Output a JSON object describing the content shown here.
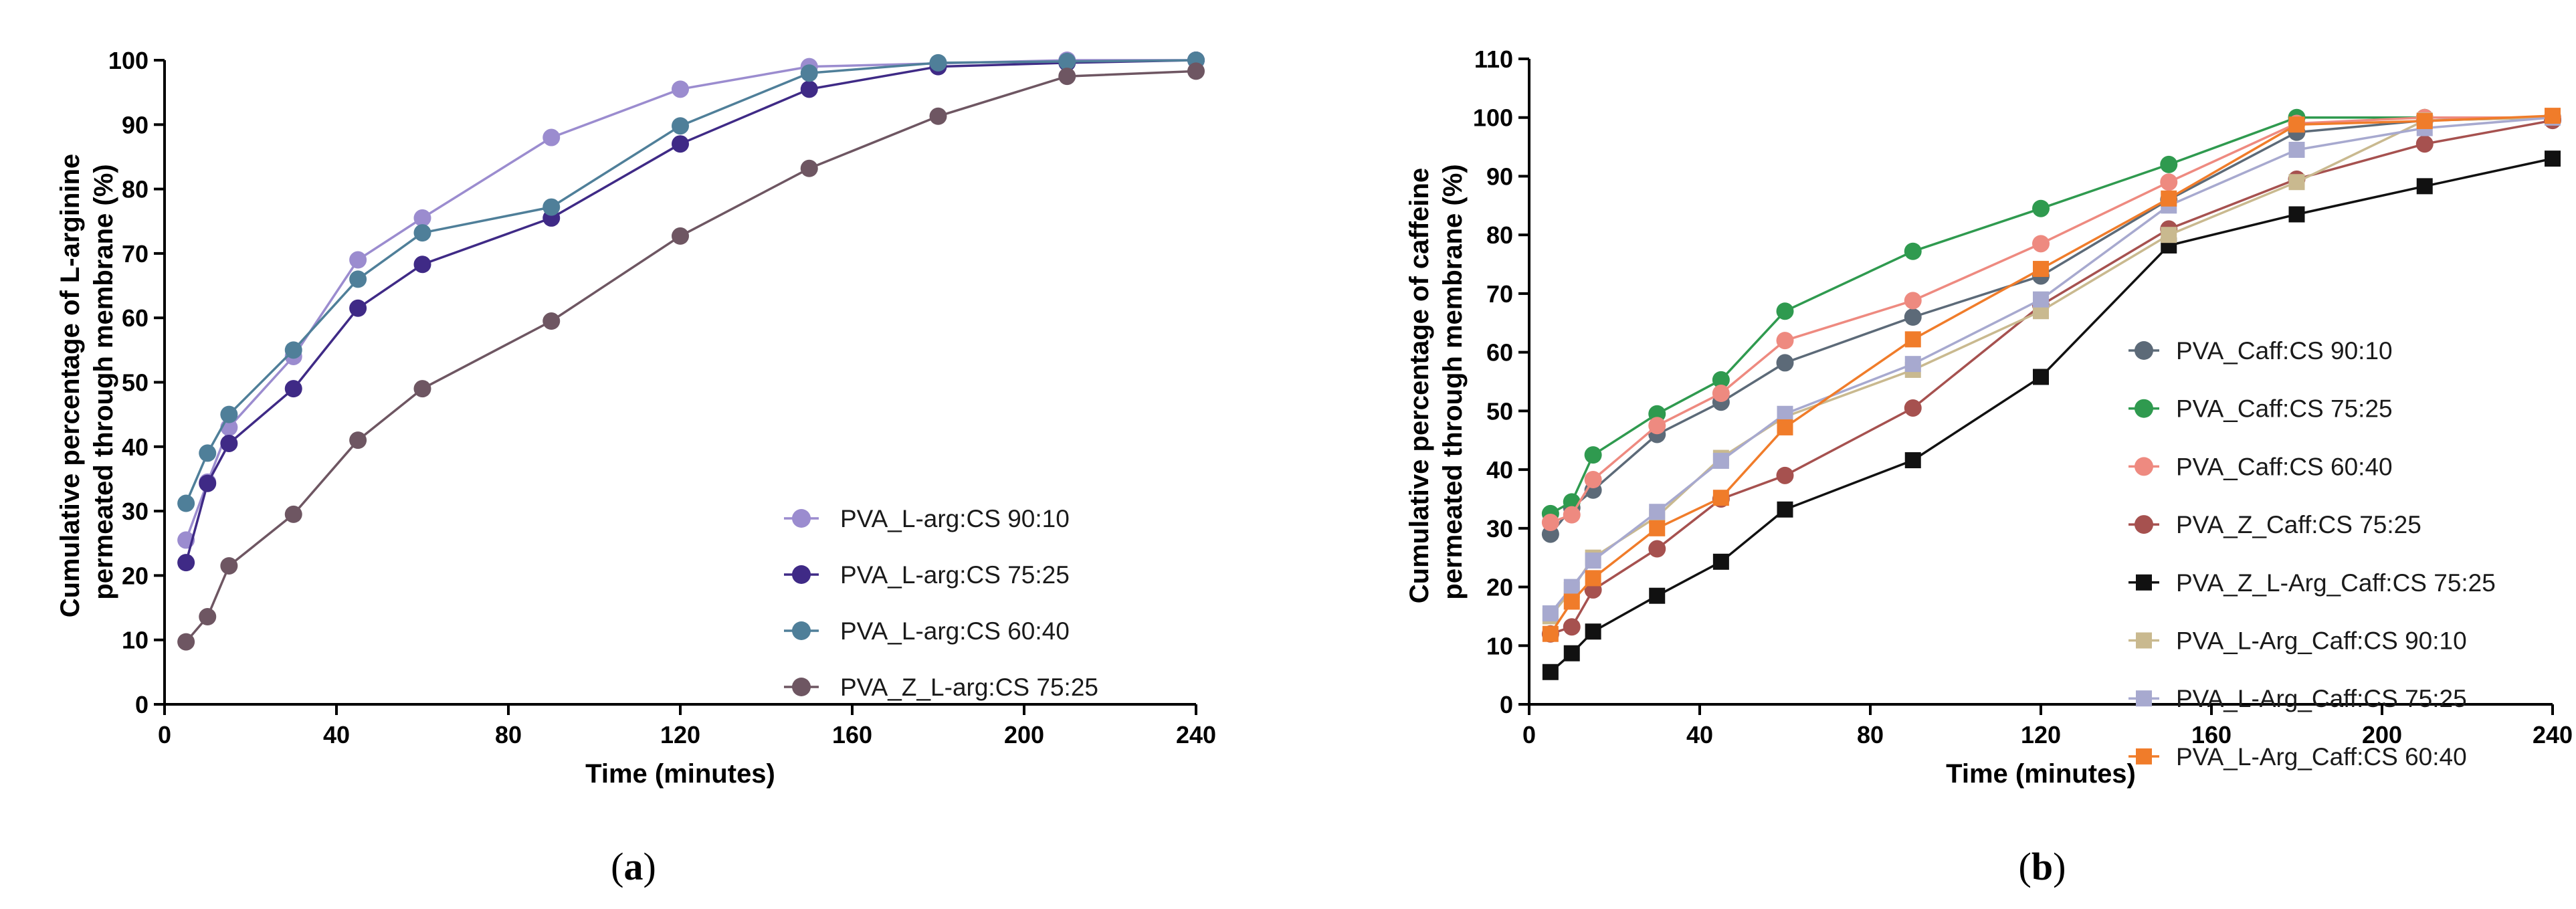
{
  "chart_data": [
    {
      "type": "line",
      "panel_label": "(a)",
      "panel_letter": "a",
      "title": "",
      "xlabel": "Time (minutes)",
      "ylabel_lines": [
        "Cumulative percentage of L-arginine",
        "permeated through membrane (%)"
      ],
      "xlim": [
        0,
        240
      ],
      "ylim": [
        0,
        100
      ],
      "xticks": [
        0,
        40,
        80,
        120,
        160,
        200,
        240
      ],
      "yticks": [
        0,
        10,
        20,
        30,
        40,
        50,
        60,
        70,
        80,
        90,
        100
      ],
      "grid": false,
      "legend_position": "lower-right",
      "series": [
        {
          "name": "PVA_L-arg:CS  90:10",
          "color": "#9b8ccf",
          "marker": "circle",
          "x": [
            5,
            10,
            15,
            30,
            45,
            60,
            90,
            120,
            150,
            180,
            210,
            240
          ],
          "y": [
            25.5,
            34.5,
            43,
            54,
            69,
            75.5,
            88,
            95.5,
            99,
            99.5,
            100,
            100
          ]
        },
        {
          "name": "PVA_L-arg:CS  75:25",
          "color": "#3f2a86",
          "marker": "circle",
          "x": [
            5,
            10,
            15,
            30,
            45,
            60,
            90,
            120,
            150,
            180,
            210,
            240
          ],
          "y": [
            22,
            34.3,
            40.5,
            49,
            61.5,
            68.3,
            75.5,
            87,
            95.5,
            99,
            99.6,
            100
          ]
        },
        {
          "name": "PVA_L-arg:CS  60:40",
          "color": "#4f7f99",
          "marker": "circle",
          "x": [
            5,
            10,
            15,
            30,
            45,
            60,
            90,
            120,
            150,
            180,
            210,
            240
          ],
          "y": [
            31.2,
            39,
            45,
            55,
            66,
            73.2,
            77.2,
            89.8,
            98,
            99.6,
            99.8,
            100
          ]
        },
        {
          "name": "PVA_Z_L-arg:CS  75:25",
          "color": "#6e5662",
          "marker": "circle",
          "x": [
            5,
            10,
            15,
            30,
            45,
            60,
            90,
            120,
            150,
            180,
            210,
            240
          ],
          "y": [
            9.7,
            13.6,
            21.5,
            29.5,
            41,
            49,
            59.5,
            72.7,
            83.2,
            91.3,
            97.5,
            98.3
          ]
        }
      ]
    },
    {
      "type": "line",
      "panel_label": "(b)",
      "panel_letter": "b",
      "title": "",
      "xlabel": "Time (minutes)",
      "ylabel_lines": [
        "Cumulative percentage of caffeine",
        "permeated through membrane (%)"
      ],
      "xlim": [
        0,
        240
      ],
      "ylim": [
        0,
        110
      ],
      "xticks": [
        0,
        40,
        80,
        120,
        160,
        200,
        240
      ],
      "yticks": [
        0,
        10,
        20,
        30,
        40,
        50,
        60,
        70,
        80,
        90,
        100,
        110
      ],
      "grid": false,
      "legend_position": "right",
      "series": [
        {
          "name": "PVA_Caff:CS  90:10",
          "color": "#5c6a78",
          "marker": "circle",
          "x": [
            5,
            10,
            15,
            30,
            45,
            60,
            90,
            120,
            150,
            180,
            210,
            240
          ],
          "y": [
            29,
            33.5,
            36.5,
            46,
            51.5,
            58.2,
            66,
            73,
            86,
            97.5,
            99.5,
            100
          ]
        },
        {
          "name": "PVA_Caff:CS  75:25",
          "color": "#2f9a4f",
          "marker": "circle",
          "x": [
            5,
            10,
            15,
            30,
            45,
            60,
            90,
            120,
            150,
            180,
            210,
            240
          ],
          "y": [
            32.5,
            34.5,
            42.5,
            49.5,
            55.3,
            67,
            77.2,
            84.5,
            92,
            100,
            100,
            100
          ]
        },
        {
          "name": "PVA_Caff:CS 60:40",
          "color": "#ee8a80",
          "marker": "circle",
          "x": [
            5,
            10,
            15,
            30,
            45,
            60,
            90,
            120,
            150,
            180,
            210,
            240
          ],
          "y": [
            31,
            32.3,
            38.3,
            47.5,
            53,
            62,
            68.8,
            78.5,
            89,
            99,
            100,
            100
          ]
        },
        {
          "name": "PVA_Z_Caff:CS 75:25",
          "color": "#a6514f",
          "marker": "circle",
          "x": [
            5,
            10,
            15,
            30,
            45,
            60,
            90,
            120,
            150,
            180,
            210,
            240
          ],
          "y": [
            12,
            13.2,
            19.5,
            26.5,
            35,
            39,
            50.5,
            68,
            81,
            89.5,
            95.5,
            99.5
          ]
        },
        {
          "name": "PVA_Z_L-Arg_Caff:CS 75:25",
          "color": "#111111",
          "marker": "square",
          "x": [
            5,
            10,
            15,
            30,
            45,
            60,
            90,
            120,
            150,
            180,
            210,
            240
          ],
          "y": [
            5.5,
            8.7,
            12.4,
            18.5,
            24.3,
            33.2,
            41.6,
            55.8,
            78.2,
            83.5,
            88.3,
            93
          ]
        },
        {
          "name": "PVA_L-Arg_Caff:CS 90:10",
          "color": "#c9b98f",
          "marker": "square",
          "x": [
            5,
            10,
            15,
            30,
            45,
            60,
            90,
            120,
            150,
            180,
            210,
            240
          ],
          "y": [
            15,
            19.5,
            25,
            32,
            42,
            49,
            57,
            67,
            80,
            89,
            99.5,
            100
          ]
        },
        {
          "name": "PVA_L-Arg_Caff:CS 75:25",
          "color": "#a7a9cf",
          "marker": "square",
          "x": [
            5,
            10,
            15,
            30,
            45,
            60,
            90,
            120,
            150,
            180,
            210,
            240
          ],
          "y": [
            15.5,
            20,
            24.5,
            32.8,
            41.5,
            49.5,
            58,
            69,
            85,
            94.5,
            98.2,
            100
          ]
        },
        {
          "name": "PVA_L-Arg_Caff:CS 60:40",
          "color": "#f07c2a",
          "marker": "square",
          "x": [
            5,
            10,
            15,
            30,
            45,
            60,
            90,
            120,
            150,
            180,
            210,
            240
          ],
          "y": [
            12,
            17.5,
            21.5,
            30,
            35.2,
            47.2,
            62.2,
            74.2,
            86.2,
            98.8,
            99.4,
            100.3
          ]
        }
      ]
    }
  ]
}
